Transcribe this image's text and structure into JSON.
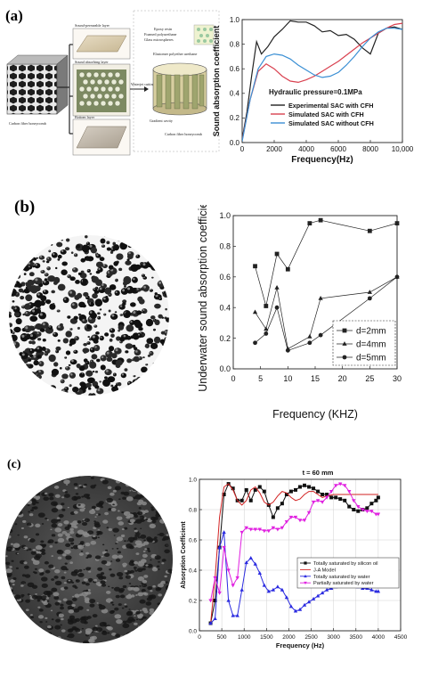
{
  "panel_a": {
    "tag": "(a)",
    "labels": {
      "sound_permeable": "Sound-permeable layer",
      "sound_absorbing": "Sound absorbing layer",
      "bottom": "Bottom layer",
      "carbon_left": "Carbon fiber honeycomb",
      "epoxy": "Epoxy resin",
      "foamed_pu": "Foamed polyurethane",
      "glass": "Glass microspheres",
      "elastomer": "Elastomer polyether urethane",
      "waterjet": "Waterjet cutting",
      "gradient": "Gradient cavity",
      "carbon_right": "Carbon fiber honeycomb"
    }
  },
  "panel_b": {
    "tag": "(b)"
  },
  "panel_c": {
    "tag": "(c)"
  },
  "chart_data": [
    {
      "type": "line",
      "panel": "a",
      "xlabel": "Frequency(Hz)",
      "ylabel": "Sound absorption coefficient",
      "xlim": [
        0,
        10000
      ],
      "ylim": [
        0,
        1.0
      ],
      "xticks": [
        "0",
        "2000",
        "4000",
        "6000",
        "8000",
        "10,000"
      ],
      "yticks": [
        "0.0",
        "0.2",
        "0.4",
        "0.6",
        "0.8",
        "1.0"
      ],
      "annotation": "Hydraulic pressure=0.1MPa",
      "series": [
        {
          "name": "Experimental SAC with CFH",
          "color": "#222222",
          "x": [
            0,
            300,
            600,
            900,
            1200,
            1600,
            2000,
            2500,
            3000,
            3500,
            4000,
            4500,
            5000,
            5500,
            6000,
            6500,
            7000,
            7500,
            8000,
            8500,
            9000,
            9500,
            10000
          ],
          "y": [
            0.03,
            0.25,
            0.55,
            0.82,
            0.72,
            0.78,
            0.86,
            0.92,
            0.99,
            0.98,
            0.98,
            0.95,
            0.9,
            0.91,
            0.87,
            0.88,
            0.84,
            0.77,
            0.72,
            0.89,
            0.93,
            0.94,
            0.92
          ]
        },
        {
          "name": "Simulated SAC with CFH",
          "color": "#d9404f",
          "x": [
            0,
            500,
            1000,
            1500,
            2000,
            2500,
            3000,
            3500,
            4000,
            4500,
            5000,
            5500,
            6000,
            6500,
            7000,
            7500,
            8000,
            8500,
            9000,
            9500,
            10000
          ],
          "y": [
            0.02,
            0.35,
            0.58,
            0.64,
            0.6,
            0.54,
            0.5,
            0.49,
            0.51,
            0.54,
            0.58,
            0.62,
            0.66,
            0.71,
            0.76,
            0.81,
            0.85,
            0.89,
            0.93,
            0.96,
            0.97
          ]
        },
        {
          "name": "Simulated SAC without CFH",
          "color": "#3a8fd4",
          "x": [
            0,
            500,
            1000,
            1500,
            2000,
            2500,
            3000,
            3500,
            4000,
            4500,
            5000,
            5500,
            6000,
            6500,
            7000,
            7500,
            8000,
            8500,
            9000,
            9500,
            10000
          ],
          "y": [
            0.01,
            0.35,
            0.6,
            0.7,
            0.72,
            0.71,
            0.68,
            0.63,
            0.59,
            0.55,
            0.53,
            0.54,
            0.57,
            0.63,
            0.7,
            0.78,
            0.85,
            0.9,
            0.93,
            0.93,
            0.92
          ]
        }
      ]
    },
    {
      "type": "line",
      "panel": "b",
      "xlabel": "Frequency (KHZ)",
      "ylabel": "Underwater sound absorption coefficient",
      "xlim": [
        0,
        30
      ],
      "ylim": [
        0.0,
        1.0
      ],
      "xticks": [
        "0",
        "5",
        "10",
        "15",
        "20",
        "25",
        "30"
      ],
      "yticks": [
        "0.0",
        "0.2",
        "0.4",
        "0.6",
        "0.8",
        "1.0"
      ],
      "series": [
        {
          "name": "d=2mm",
          "marker": "square",
          "x": [
            4,
            6,
            8,
            10,
            14,
            16,
            25,
            30
          ],
          "y": [
            0.67,
            0.41,
            0.75,
            0.65,
            0.95,
            0.97,
            0.9,
            0.95
          ]
        },
        {
          "name": "d=4mm",
          "marker": "triangle",
          "x": [
            4,
            6,
            8,
            10,
            14,
            16,
            25,
            30
          ],
          "y": [
            0.37,
            0.26,
            0.53,
            0.13,
            0.21,
            0.46,
            0.5,
            0.6
          ]
        },
        {
          "name": "d=5mm",
          "marker": "circle",
          "x": [
            4,
            6,
            8,
            10,
            14,
            16,
            25,
            30
          ],
          "y": [
            0.17,
            0.23,
            0.4,
            0.12,
            0.17,
            0.22,
            0.46,
            0.6
          ]
        }
      ]
    },
    {
      "type": "line",
      "panel": "c",
      "title": "t = 60 mm",
      "xlabel": "Frequency (Hz)",
      "ylabel": "Absorption Coefficient",
      "xlim": [
        0,
        4500
      ],
      "ylim": [
        0.0,
        1.0
      ],
      "xticks": [
        "0",
        "500",
        "1000",
        "1500",
        "2000",
        "2500",
        "3000",
        "3500",
        "4000",
        "4500"
      ],
      "yticks": [
        "0.0",
        "0.2",
        "0.4",
        "0.6",
        "0.8",
        "1.0"
      ],
      "series": [
        {
          "name": "Totally saturated by silicon oil",
          "color": "#111111",
          "marker": "square",
          "x": [
            250,
            350,
            450,
            550,
            650,
            750,
            850,
            950,
            1050,
            1150,
            1250,
            1350,
            1450,
            1550,
            1650,
            1750,
            1850,
            1950,
            2050,
            2150,
            2250,
            2350,
            2450,
            2550,
            2650,
            2750,
            2850,
            2950,
            3050,
            3150,
            3250,
            3350,
            3450,
            3550,
            3650,
            3750,
            3850,
            3950,
            4000
          ],
          "y": [
            0.05,
            0.2,
            0.55,
            0.9,
            0.97,
            0.94,
            0.86,
            0.86,
            0.93,
            0.86,
            0.93,
            0.95,
            0.92,
            0.83,
            0.75,
            0.81,
            0.84,
            0.9,
            0.92,
            0.93,
            0.95,
            0.96,
            0.95,
            0.94,
            0.92,
            0.9,
            0.9,
            0.88,
            0.88,
            0.87,
            0.86,
            0.82,
            0.8,
            0.79,
            0.8,
            0.81,
            0.84,
            0.86,
            0.88
          ]
        },
        {
          "name": "J-A Model",
          "color": "#d22222",
          "marker": "none",
          "x": [
            250,
            350,
            450,
            550,
            650,
            750,
            850,
            950,
            1050,
            1150,
            1250,
            1350,
            1450,
            1550,
            1650,
            1750,
            1850,
            1950,
            2050,
            2150,
            2250,
            2350,
            2450,
            2550,
            2650,
            2750,
            2850,
            3000,
            3250,
            3500,
            3750,
            4000
          ],
          "y": [
            0.05,
            0.35,
            0.75,
            0.95,
            0.97,
            0.93,
            0.86,
            0.83,
            0.86,
            0.93,
            0.95,
            0.91,
            0.85,
            0.83,
            0.85,
            0.89,
            0.92,
            0.91,
            0.88,
            0.86,
            0.87,
            0.9,
            0.92,
            0.92,
            0.9,
            0.88,
            0.89,
            0.9,
            0.9,
            0.9,
            0.9,
            0.9
          ]
        },
        {
          "name": "Totally saturated by water",
          "color": "#2a2ae0",
          "marker": "triangle",
          "x": [
            250,
            350,
            450,
            550,
            650,
            750,
            850,
            950,
            1050,
            1150,
            1250,
            1350,
            1450,
            1550,
            1650,
            1750,
            1850,
            1950,
            2050,
            2150,
            2250,
            2350,
            2450,
            2550,
            2650,
            2750,
            2850,
            2950,
            3050,
            3150,
            3250,
            3350,
            3450,
            3550,
            3650,
            3750,
            3850,
            3950,
            4000
          ],
          "y": [
            0.05,
            0.08,
            0.55,
            0.65,
            0.2,
            0.1,
            0.1,
            0.27,
            0.45,
            0.48,
            0.44,
            0.38,
            0.3,
            0.26,
            0.27,
            0.29,
            0.27,
            0.22,
            0.16,
            0.13,
            0.14,
            0.17,
            0.19,
            0.21,
            0.23,
            0.25,
            0.27,
            0.28,
            0.29,
            0.3,
            0.3,
            0.3,
            0.3,
            0.29,
            0.28,
            0.28,
            0.27,
            0.26,
            0.26
          ]
        },
        {
          "name": "Partially saturated by water",
          "color": "#e020e0",
          "marker": "triangle-down",
          "x": [
            250,
            350,
            450,
            550,
            650,
            750,
            850,
            950,
            1050,
            1150,
            1250,
            1350,
            1450,
            1550,
            1650,
            1750,
            1850,
            1950,
            2050,
            2150,
            2250,
            2350,
            2450,
            2550,
            2650,
            2750,
            2850,
            2950,
            3050,
            3150,
            3250,
            3350,
            3450,
            3550,
            3650,
            3750,
            3850,
            3950,
            4000
          ],
          "y": [
            0.2,
            0.35,
            0.25,
            0.55,
            0.4,
            0.3,
            0.35,
            0.65,
            0.68,
            0.67,
            0.67,
            0.67,
            0.66,
            0.66,
            0.68,
            0.67,
            0.68,
            0.72,
            0.75,
            0.75,
            0.73,
            0.73,
            0.78,
            0.85,
            0.86,
            0.85,
            0.88,
            0.92,
            0.96,
            0.97,
            0.96,
            0.92,
            0.86,
            0.82,
            0.8,
            0.79,
            0.79,
            0.77,
            0.77
          ]
        }
      ]
    }
  ]
}
